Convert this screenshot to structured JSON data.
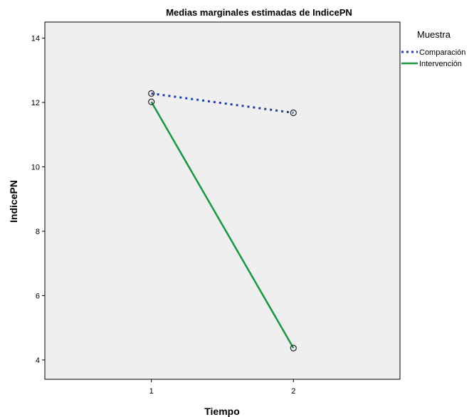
{
  "chart_data": {
    "type": "line",
    "title": "Medias marginales estimadas de IndicePN",
    "xlabel": "Tiempo",
    "ylabel": "IndicePN",
    "categories": [
      "1",
      "2"
    ],
    "xlim": [
      0.25,
      2.75
    ],
    "ylim": [
      3.4,
      14.5
    ],
    "yticks": [
      4,
      6,
      8,
      10,
      12,
      14
    ],
    "grid": false,
    "legend": {
      "title": "Muestra",
      "position": "right"
    },
    "series": [
      {
        "name": "Comparación",
        "values": [
          12.28,
          11.68
        ],
        "color": "#1f3fa8",
        "style": "dotted"
      },
      {
        "name": "Intervención",
        "values": [
          12.02,
          4.37
        ],
        "color": "#1a9641",
        "style": "solid"
      }
    ],
    "plot_background": "#efefef"
  }
}
